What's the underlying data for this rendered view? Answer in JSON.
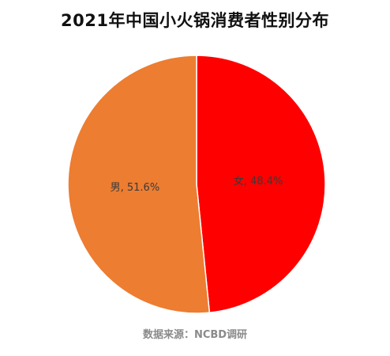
{
  "title": "2021年中国小火锅消费者性别分布",
  "source": "数据来源：NCBD调研",
  "chart_data": {
    "type": "pie",
    "title": "2021年中国小火锅消费者性别分布",
    "slices": [
      {
        "label": "女",
        "value": 48.4,
        "display": "女, 48.4%",
        "color": "#FF0000"
      },
      {
        "label": "男",
        "value": 51.6,
        "display": "男, 51.6%",
        "color": "#ED7D31"
      }
    ],
    "start": "12 o'clock",
    "direction": "clockwise",
    "legend": "none",
    "data_labels": "inside"
  }
}
